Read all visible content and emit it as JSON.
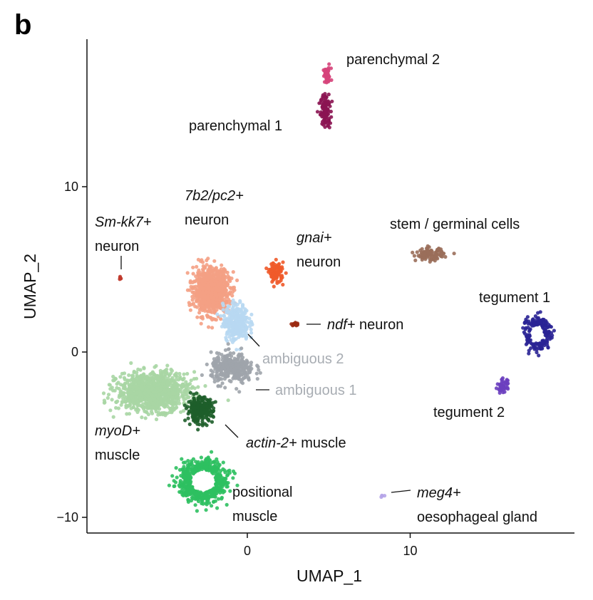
{
  "panel_letter": "b",
  "chart_data": {
    "type": "scatter",
    "title": "",
    "xlabel": "UMAP_1",
    "ylabel": "UMAP_2",
    "xlim": [
      -9.8,
      20
    ],
    "ylim": [
      -11,
      19
    ],
    "x_ticks": [
      0,
      10
    ],
    "x_tick_labels": [
      "0",
      "10"
    ],
    "y_ticks": [
      -10,
      0,
      10
    ],
    "y_tick_labels": [
      "−10",
      "0",
      "10"
    ],
    "grid": false,
    "legend": "none",
    "clusters": [
      {
        "id": "parenchymal-2",
        "label": [
          "parenchymal 2"
        ],
        "color": "#d6447a",
        "n": 50,
        "shape": "blob",
        "center": [
          4.9,
          16.7
        ],
        "spread": [
          0.2,
          0.4
        ]
      },
      {
        "id": "parenchymal-1",
        "label": [
          "parenchymal 1"
        ],
        "color": "#8b1452",
        "n": 110,
        "shape": "blob",
        "center": [
          4.8,
          14.6
        ],
        "spread": [
          0.25,
          0.8
        ]
      },
      {
        "id": "sm-kk7-neuron",
        "label": [
          "Sm-kk7+",
          "neuron"
        ],
        "color": "#c0392b",
        "n": 6,
        "shape": "blob",
        "center": [
          -7.8,
          4.5
        ],
        "spread": [
          0.06,
          0.08
        ]
      },
      {
        "id": "7b2-pc2-neuron",
        "label": [
          "7b2/pc2+",
          "neuron"
        ],
        "color": "#f4a084",
        "n": 900,
        "shape": "blob",
        "center": [
          -2.2,
          3.7
        ],
        "spread": [
          0.9,
          1.1
        ]
      },
      {
        "id": "gnai-neuron",
        "label": [
          "gnai+",
          "neuron"
        ],
        "color": "#ef5a2a",
        "n": 90,
        "shape": "blob",
        "center": [
          1.8,
          4.8
        ],
        "spread": [
          0.35,
          0.5
        ]
      },
      {
        "id": "ndf-neuron",
        "label": [
          "ndf+ neuron"
        ],
        "color": "#9b2a12",
        "n": 14,
        "shape": "blob",
        "center": [
          2.9,
          1.7
        ],
        "spread": [
          0.2,
          0.08
        ]
      },
      {
        "id": "stem-germinal-cells",
        "label": [
          "stem / germinal cells"
        ],
        "color": "#9a6e5a",
        "n": 110,
        "shape": "blob",
        "center": [
          11.2,
          5.9
        ],
        "spread": [
          0.7,
          0.3
        ]
      },
      {
        "id": "tegument-1",
        "label": [
          "tegument 1"
        ],
        "color": "#2a2495",
        "n": 170,
        "shape": "ring",
        "center": [
          17.8,
          1.1
        ],
        "spread": [
          0.8,
          1.0
        ]
      },
      {
        "id": "ambiguous-2",
        "label": [
          "ambiguous 2"
        ],
        "color": "#b8d8f2",
        "n": 320,
        "shape": "blob",
        "center": [
          -0.7,
          1.8
        ],
        "spread": [
          0.65,
          0.9
        ]
      },
      {
        "id": "ambiguous-1",
        "label": [
          "ambiguous 1"
        ],
        "color": "#9ea4ab",
        "n": 340,
        "shape": "blob",
        "center": [
          -0.9,
          -1.0
        ],
        "spread": [
          1.1,
          0.75
        ]
      },
      {
        "id": "myod-muscle",
        "label": [
          "myoD+",
          "muscle"
        ],
        "color": "#a9d6a4",
        "n": 1100,
        "shape": "blob",
        "center": [
          -5.8,
          -2.4
        ],
        "spread": [
          1.8,
          0.95
        ]
      },
      {
        "id": "actin-2-muscle",
        "label": [
          "actin-2+ muscle"
        ],
        "color": "#1e5e2a",
        "n": 260,
        "shape": "blob",
        "center": [
          -2.9,
          -3.5
        ],
        "spread": [
          0.65,
          0.6
        ]
      },
      {
        "id": "positional-muscle",
        "label": [
          "positional",
          "muscle"
        ],
        "color": "#2ec060",
        "n": 500,
        "shape": "ring",
        "center": [
          -2.7,
          -7.8
        ],
        "spread": [
          1.4,
          1.25
        ]
      },
      {
        "id": "tegument-2",
        "label": [
          "tegument 2"
        ],
        "color": "#6c3fbf",
        "n": 45,
        "shape": "blob",
        "center": [
          15.7,
          -2.1
        ],
        "spread": [
          0.3,
          0.35
        ]
      },
      {
        "id": "meg4-oesophageal-gland",
        "label": [
          "meg4+",
          "oesophageal gland"
        ],
        "color": "#b5a4e8",
        "n": 4,
        "shape": "blob",
        "center": [
          8.3,
          -8.7
        ],
        "spread": [
          0.06,
          0.06
        ]
      }
    ]
  }
}
